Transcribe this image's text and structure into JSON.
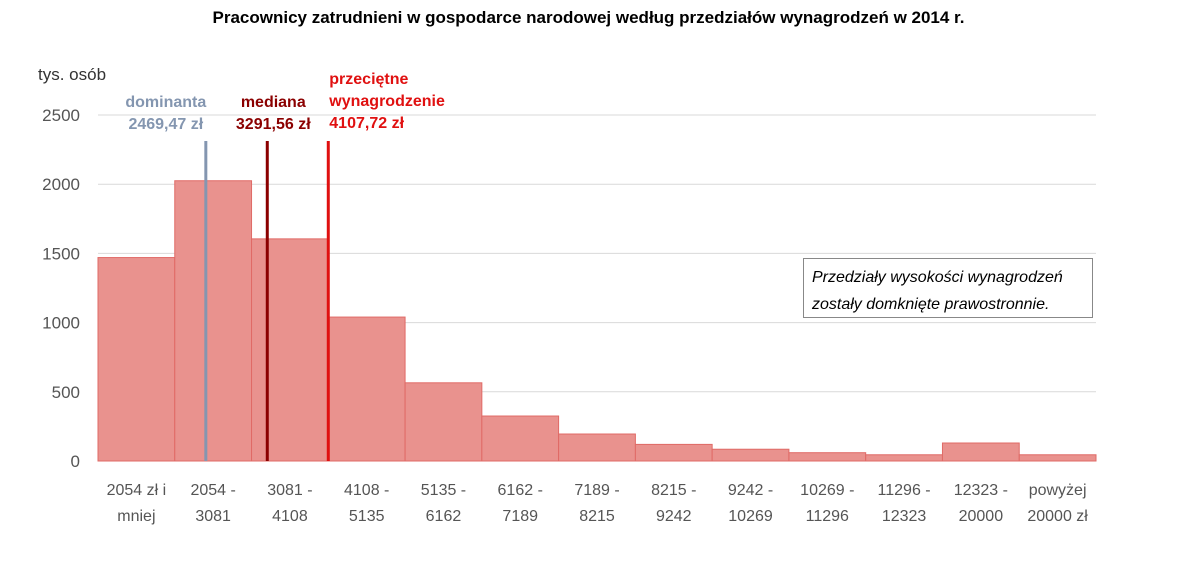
{
  "chart_data": {
    "type": "bar",
    "title": "Pracownicy zatrudnieni w gospodarce narodowej według przedziałów wynagrodzeń w 2014 r.",
    "ylabel": "tys. osób",
    "xlabel": "",
    "ylim": [
      0,
      2500
    ],
    "yticks": [
      "0",
      "500",
      "1000",
      "1500",
      "2000",
      "2500"
    ],
    "grid": true,
    "categories": [
      [
        "2054 zł i",
        "mniej"
      ],
      [
        "2054 -",
        "3081"
      ],
      [
        "3081 -",
        "4108"
      ],
      [
        "4108 -",
        "5135"
      ],
      [
        "5135 -",
        "6162"
      ],
      [
        "6162 -",
        "7189"
      ],
      [
        "7189 -",
        "8215"
      ],
      [
        "8215 -",
        "9242"
      ],
      [
        "9242 -",
        "10269"
      ],
      [
        "10269 -",
        "11296"
      ],
      [
        "11296 -",
        "12323"
      ],
      [
        "12323 -",
        "20000"
      ],
      [
        "powyżej",
        "20000 zł"
      ]
    ],
    "values": [
      1470,
      2025,
      1605,
      1040,
      565,
      325,
      195,
      120,
      85,
      60,
      45,
      130,
      45
    ],
    "bar_color": "#e9928e",
    "bar_edge_color": "#e06a66",
    "annotations": [
      {
        "key": "dominanta",
        "lines": [
          "dominanta",
          "2469,47 zł"
        ],
        "value": 2469.47,
        "color": "#8496b0"
      },
      {
        "key": "mediana",
        "lines": [
          "mediana",
          "3291,56 zł"
        ],
        "value": 3291.56,
        "color": "#8b0000"
      },
      {
        "key": "srednia",
        "lines": [
          "przeciętne",
          "wynagrodzenie",
          "4107,72 zł"
        ],
        "value": 4107.72,
        "color": "#e01010"
      }
    ],
    "note": [
      "Przedziały wysokości wynagrodzeń",
      "zostały domknięte prawostronnie."
    ]
  }
}
